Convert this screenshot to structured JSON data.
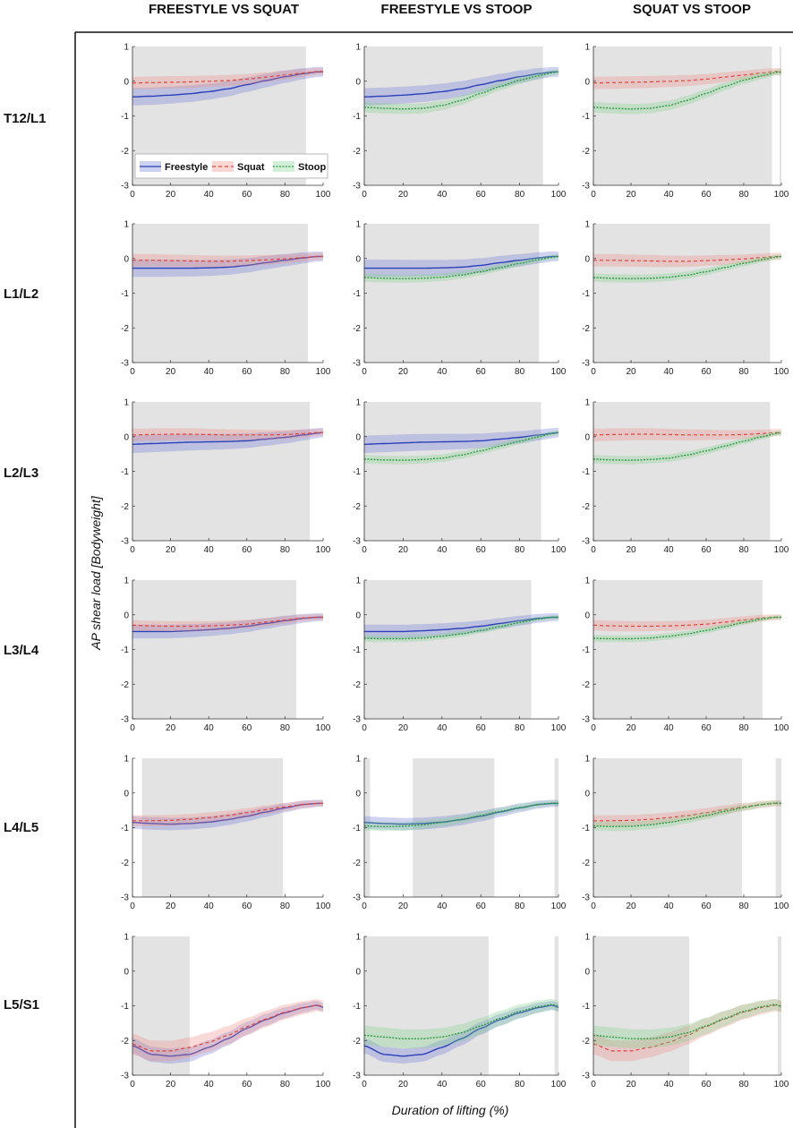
{
  "figure": {
    "column_titles": [
      "FREESTYLE VS SQUAT",
      "FREESTYLE VS STOOP",
      "SQUAT VS STOOP"
    ],
    "row_labels": [
      "T12/L1",
      "L1/L2",
      "L2/L3",
      "L3/L4",
      "L4/L5",
      "L5/S1"
    ],
    "ylabel": "AP shear load [Bodyweight]",
    "xlabel": "Duration of lifting (%)",
    "legend": [
      "Freestyle",
      "Squat",
      "Stoop"
    ]
  },
  "colors": {
    "freestyle": "#2b3fb8",
    "squat": "#e0443c",
    "stoop": "#2e9a44",
    "freestyle_band": "#6c78d8",
    "squat_band": "#f08c86",
    "stoop_band": "#7ed08c",
    "shade": "#e3e3e3"
  },
  "chart_data": {
    "type": "line",
    "x_range": [
      0,
      100
    ],
    "ylim": [
      -3,
      1
    ],
    "xticks": [
      0,
      20,
      40,
      60,
      80,
      100
    ],
    "yticks": [
      1,
      0,
      -1,
      -2,
      -3
    ],
    "x_knots": [
      0,
      10,
      20,
      30,
      40,
      50,
      60,
      70,
      80,
      90,
      97,
      100
    ],
    "levels": [
      {
        "name": "T12/L1",
        "freestyle": {
          "mean": [
            -0.45,
            -0.43,
            -0.4,
            -0.36,
            -0.3,
            -0.22,
            -0.1,
            0.02,
            0.13,
            0.22,
            0.27,
            0.27
          ],
          "sd": 0.25
        },
        "squat": {
          "mean": [
            -0.05,
            -0.04,
            -0.03,
            -0.02,
            0.0,
            0.02,
            0.06,
            0.12,
            0.18,
            0.24,
            0.28,
            0.28
          ],
          "sd": 0.18
        },
        "stoop": {
          "mean": [
            -0.75,
            -0.78,
            -0.8,
            -0.78,
            -0.7,
            -0.55,
            -0.35,
            -0.15,
            0.03,
            0.16,
            0.25,
            0.27
          ],
          "sd": 0.15
        },
        "significance": [
          [
            [
              0,
              91
            ]
          ],
          [
            [
              0,
              92
            ]
          ],
          [
            [
              0,
              95
            ],
            [
              99,
              100
            ]
          ]
        ]
      },
      {
        "name": "L1/L2",
        "freestyle": {
          "mean": [
            -0.28,
            -0.28,
            -0.28,
            -0.28,
            -0.27,
            -0.25,
            -0.2,
            -0.12,
            -0.05,
            0.02,
            0.06,
            0.06
          ],
          "sd": 0.25
        },
        "squat": {
          "mean": [
            -0.05,
            -0.05,
            -0.06,
            -0.07,
            -0.08,
            -0.08,
            -0.06,
            -0.04,
            -0.01,
            0.03,
            0.06,
            0.06
          ],
          "sd": 0.18
        },
        "stoop": {
          "mean": [
            -0.55,
            -0.57,
            -0.58,
            -0.57,
            -0.54,
            -0.48,
            -0.38,
            -0.26,
            -0.14,
            -0.03,
            0.04,
            0.06
          ],
          "sd": 0.12
        },
        "significance": [
          [
            [
              0,
              92
            ]
          ],
          [
            [
              0,
              90
            ]
          ],
          [
            [
              0,
              94
            ]
          ]
        ]
      },
      {
        "name": "L2/L3",
        "freestyle": {
          "mean": [
            -0.22,
            -0.2,
            -0.18,
            -0.16,
            -0.15,
            -0.14,
            -0.12,
            -0.07,
            -0.02,
            0.05,
            0.1,
            0.12
          ],
          "sd": 0.25
        },
        "squat": {
          "mean": [
            0.05,
            0.06,
            0.07,
            0.07,
            0.06,
            0.05,
            0.05,
            0.05,
            0.06,
            0.09,
            0.12,
            0.12
          ],
          "sd": 0.18
        },
        "stoop": {
          "mean": [
            -0.65,
            -0.67,
            -0.68,
            -0.66,
            -0.62,
            -0.53,
            -0.41,
            -0.27,
            -0.13,
            0.0,
            0.09,
            0.12
          ],
          "sd": 0.12
        },
        "significance": [
          [
            [
              0,
              93
            ]
          ],
          [
            [
              0,
              91
            ]
          ],
          [
            [
              0,
              94
            ]
          ]
        ]
      },
      {
        "name": "L3/L4",
        "freestyle": {
          "mean": [
            -0.48,
            -0.48,
            -0.48,
            -0.46,
            -0.43,
            -0.39,
            -0.33,
            -0.25,
            -0.17,
            -0.1,
            -0.07,
            -0.07
          ],
          "sd": 0.2
        },
        "squat": {
          "mean": [
            -0.3,
            -0.32,
            -0.33,
            -0.33,
            -0.32,
            -0.3,
            -0.27,
            -0.21,
            -0.15,
            -0.09,
            -0.07,
            -0.07
          ],
          "sd": 0.15
        },
        "stoop": {
          "mean": [
            -0.68,
            -0.69,
            -0.69,
            -0.67,
            -0.62,
            -0.55,
            -0.45,
            -0.34,
            -0.22,
            -0.12,
            -0.07,
            -0.07
          ],
          "sd": 0.1
        },
        "significance": [
          [
            [
              0,
              86
            ]
          ],
          [
            [
              0,
              86
            ]
          ],
          [
            [
              0,
              90
            ]
          ]
        ]
      },
      {
        "name": "L4/L5",
        "freestyle": {
          "mean": [
            -0.85,
            -0.88,
            -0.9,
            -0.88,
            -0.84,
            -0.77,
            -0.67,
            -0.55,
            -0.43,
            -0.33,
            -0.3,
            -0.3
          ],
          "sd": 0.18
        },
        "squat": {
          "mean": [
            -0.8,
            -0.8,
            -0.79,
            -0.76,
            -0.71,
            -0.65,
            -0.57,
            -0.48,
            -0.4,
            -0.33,
            -0.3,
            -0.3
          ],
          "sd": 0.16
        },
        "stoop": {
          "mean": [
            -0.95,
            -0.97,
            -0.96,
            -0.92,
            -0.85,
            -0.76,
            -0.65,
            -0.53,
            -0.42,
            -0.33,
            -0.29,
            -0.3
          ],
          "sd": 0.13
        },
        "significance": [
          [
            [
              5,
              79
            ]
          ],
          [
            [
              0,
              3
            ],
            [
              25,
              67
            ],
            [
              98,
              100
            ]
          ],
          [
            [
              0,
              79
            ],
            [
              97,
              100
            ]
          ]
        ]
      },
      {
        "name": "L5/S1",
        "freestyle": {
          "mean": [
            -2.15,
            -2.4,
            -2.45,
            -2.4,
            -2.2,
            -1.95,
            -1.65,
            -1.4,
            -1.2,
            -1.05,
            -0.98,
            -1.05
          ],
          "sd": 0.22
        },
        "squat": {
          "mean": [
            -2.1,
            -2.3,
            -2.3,
            -2.2,
            -2.05,
            -1.85,
            -1.6,
            -1.38,
            -1.18,
            -1.05,
            -0.98,
            -1.02
          ],
          "sd": 0.3
        },
        "stoop": {
          "mean": [
            -1.85,
            -1.9,
            -1.95,
            -1.95,
            -1.9,
            -1.78,
            -1.58,
            -1.36,
            -1.16,
            -1.02,
            -0.96,
            -1.02
          ],
          "sd": 0.28
        },
        "significance": [
          [
            [
              0,
              30
            ]
          ],
          [
            [
              0,
              64
            ],
            [
              98,
              100
            ]
          ],
          [
            [
              0,
              51
            ],
            [
              98,
              100
            ]
          ]
        ]
      }
    ],
    "panels": [
      {
        "column": "FREESTYLE VS SQUAT",
        "series": [
          "freestyle",
          "squat"
        ]
      },
      {
        "column": "FREESTYLE VS STOOP",
        "series": [
          "freestyle",
          "stoop"
        ]
      },
      {
        "column": "SQUAT VS STOOP",
        "series": [
          "squat",
          "stoop"
        ]
      }
    ]
  }
}
